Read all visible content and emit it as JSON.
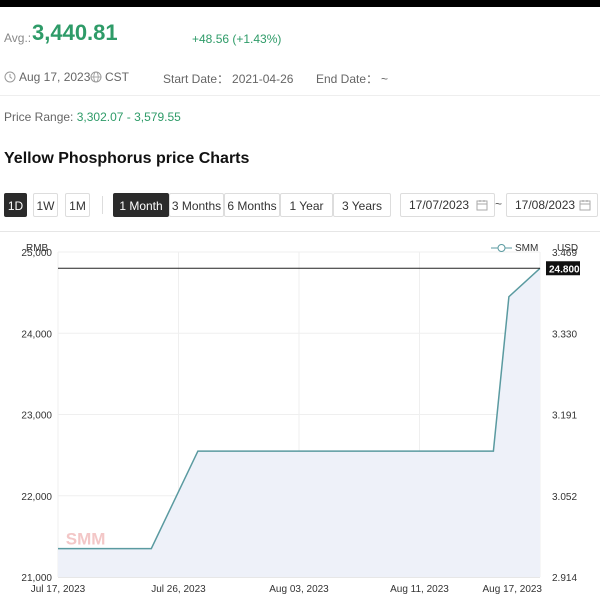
{
  "summary": {
    "avg_label": "Avg.:",
    "avg_value": "3,440.81",
    "change": "+48.56 (+1.43%)",
    "date": "Aug 17, 2023",
    "timezone": "CST",
    "start_label": "Start Date：",
    "start_value": "2021-04-26",
    "end_label": "End Date：",
    "end_value": "~",
    "range_label": "Price Range:",
    "range_value": "3,302.07 - 3,579.55"
  },
  "title": "Yellow Phosphorus price Charts",
  "controls": {
    "quick": [
      "1D",
      "1W",
      "1M"
    ],
    "periods": [
      "1 Month",
      "3 Months",
      "6 Months",
      "1 Year",
      "3 Years"
    ],
    "active_period": "1 Month",
    "date_from": "17/07/2023",
    "date_sep": "~",
    "date_to": "17/08/2023"
  },
  "chart_data": {
    "type": "area",
    "left_unit": "RMB",
    "right_unit": "USD",
    "legend": "SMM",
    "watermark": "SMM",
    "y_ticks": [
      "25,000",
      "24,000",
      "23,000",
      "22,000",
      "21,000"
    ],
    "y_range": [
      21000,
      25000
    ],
    "y2_ticks": [
      "3.469",
      "3.330",
      "3.191",
      "3.052",
      "2.914"
    ],
    "x_ticks": [
      "Jul 17, 2023",
      "Jul 26, 2023",
      "Aug 03, 2023",
      "Aug 11, 2023",
      "Aug 17, 2023"
    ],
    "x_range_days": 31,
    "current_value": "24.800",
    "current_y": 24800,
    "points": [
      {
        "d": 0,
        "v": 21350
      },
      {
        "d": 2,
        "v": 21350
      },
      {
        "d": 4,
        "v": 21350
      },
      {
        "d": 6,
        "v": 21350
      },
      {
        "d": 9,
        "v": 22550
      },
      {
        "d": 12,
        "v": 22550
      },
      {
        "d": 16,
        "v": 22550
      },
      {
        "d": 20,
        "v": 22550
      },
      {
        "d": 24,
        "v": 22550
      },
      {
        "d": 28,
        "v": 22550
      },
      {
        "d": 29,
        "v": 24450
      },
      {
        "d": 31,
        "v": 24800
      }
    ],
    "color_line": "#5a9aa0",
    "color_fill": "#eef1f9"
  }
}
